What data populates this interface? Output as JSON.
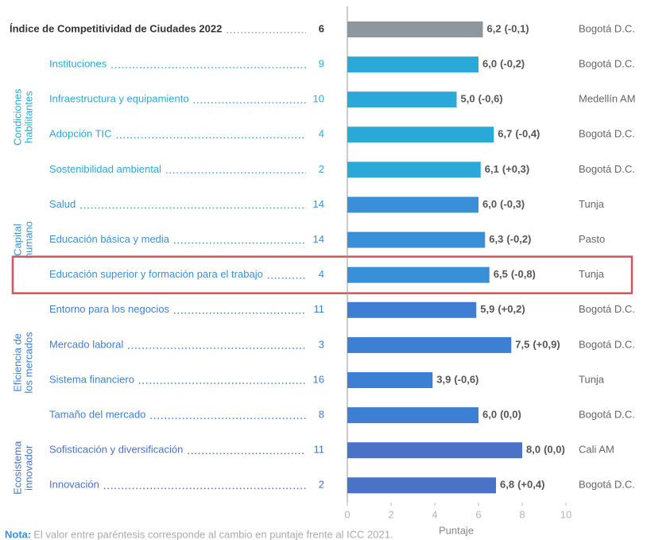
{
  "chart_data": {
    "type": "bar",
    "orientation": "horizontal",
    "categories": [
      "Índice de Competitividad de Ciudades 2022",
      "Instituciones",
      "Infraestructura y equipamiento",
      "Adopción TIC",
      "Sostenibilidad ambiental",
      "Salud",
      "Educación básica y media",
      "Educación superior y formación para el trabajo",
      "Entorno para los negocios",
      "Mercado laboral",
      "Sistema financiero",
      "Tamaño del mercado",
      "Sofisticación y diversificación",
      "Innovación"
    ],
    "ranks": [
      6,
      9,
      10,
      4,
      2,
      14,
      14,
      4,
      11,
      3,
      16,
      8,
      11,
      2
    ],
    "values": [
      6.2,
      6.0,
      5.0,
      6.7,
      6.1,
      6.0,
      6.3,
      6.5,
      5.9,
      7.5,
      3.9,
      6.0,
      8.0,
      6.8
    ],
    "value_labels": [
      "6,2",
      "6,0",
      "5,0",
      "6,7",
      "6,1",
      "6,0",
      "6,3",
      "6,5",
      "5,9",
      "7,5",
      "3,9",
      "6,0",
      "8,0",
      "6,8"
    ],
    "change_labels": [
      "(-0,1)",
      "(-0,2)",
      "(-0,6)",
      "(-0,4)",
      "(+0,3)",
      "(-0,3)",
      "(-0,2)",
      "(-0,8)",
      "(+0,2)",
      "(+0,9)",
      "(-0,6)",
      "(0,0)",
      "(0,0)",
      "(+0,4)"
    ],
    "leaders": [
      "Bogotá D.C.",
      "Bogotá D.C.",
      "Medellín AM",
      "Bogotá D.C.",
      "Bogotá D.C.",
      "Tunja",
      "Pasto",
      "Tunja",
      "Bogotá D.C.",
      "Bogotá D.C.",
      "Tunja",
      "Bogotá D.C.",
      "Cali AM",
      "Bogotá D.C."
    ],
    "colors": [
      "#8e969e",
      "#2aa9d8",
      "#2aa9d8",
      "#2aa9d8",
      "#2aa9d8",
      "#3a90d8",
      "#3a90d8",
      "#3a90d8",
      "#3d7fd2",
      "#3d7fd2",
      "#3d7fd2",
      "#3d7fd2",
      "#4a72c6",
      "#4a72c6"
    ],
    "groups": [
      {
        "lines": [
          "Condiciones",
          "habilitantes"
        ],
        "color": "#2aa9d8"
      },
      {
        "lines": [
          "Capital",
          "humano"
        ],
        "color": "#3a90d8"
      },
      {
        "lines": [
          "Eficiencia de",
          "los mercados"
        ],
        "color": "#3d7fd2"
      },
      {
        "lines": [
          "Ecosistema",
          "innovador"
        ],
        "color": "#4a72c6"
      }
    ],
    "xlim": [
      0,
      10
    ],
    "xticks": [
      0,
      2,
      4,
      6,
      8,
      10
    ],
    "xlabel": "Puntaje",
    "note_label": "Nota:",
    "note": "El valor entre paréntesis corresponde al cambio en puntaje frente al ICC 2021."
  }
}
